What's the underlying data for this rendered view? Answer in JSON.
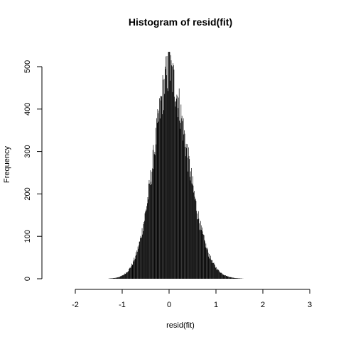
{
  "chart_data": {
    "type": "histogram",
    "title": "Histogram of resid(fit)",
    "xlabel": "resid(fit)",
    "ylabel": "Frequency",
    "xlim": [
      -2.5,
      3.0
    ],
    "ylim": [
      0,
      540
    ],
    "xticks": [
      -2,
      -1,
      0,
      1,
      2,
      3
    ],
    "xtick_labels": [
      "-2",
      "-1",
      "0",
      "1",
      "2",
      "3"
    ],
    "yticks": [
      0,
      100,
      200,
      300,
      400,
      500
    ],
    "ytick_labels": [
      "0",
      "100",
      "200",
      "300",
      "400",
      "500"
    ],
    "bin_width": 0.01,
    "bin_range": [
      -2.5,
      3.0
    ],
    "distribution": {
      "mode_x": 0.0,
      "peak_count": 535,
      "left_scale": 0.33,
      "right_scale": 0.4
    },
    "fill_color": "#000000",
    "grid": false,
    "legend": "none"
  }
}
